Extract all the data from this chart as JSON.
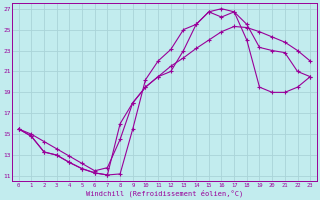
{
  "xlabel": "Windchill (Refroidissement éolien,°C)",
  "bg_color": "#c2ecee",
  "grid_color": "#aad4d8",
  "line_color": "#990099",
  "xlim": [
    -0.5,
    23.5
  ],
  "ylim": [
    10.5,
    27.5
  ],
  "xticks": [
    0,
    1,
    2,
    3,
    4,
    5,
    6,
    7,
    8,
    9,
    10,
    11,
    12,
    13,
    14,
    15,
    16,
    17,
    18,
    19,
    20,
    21,
    22,
    23
  ],
  "yticks": [
    11,
    13,
    15,
    17,
    19,
    21,
    23,
    25,
    27
  ],
  "line1_x": [
    0,
    1,
    2,
    3,
    4,
    5,
    6,
    7,
    8,
    9,
    10,
    11,
    12,
    13,
    14,
    15,
    16,
    17,
    18,
    19,
    20,
    21,
    22,
    23
  ],
  "line1_y": [
    15.5,
    15.0,
    14.3,
    13.6,
    12.9,
    12.2,
    11.5,
    11.8,
    14.5,
    18.0,
    19.5,
    20.5,
    21.5,
    22.3,
    23.2,
    24.0,
    24.8,
    25.3,
    25.2,
    24.8,
    24.3,
    23.8,
    23.0,
    22.0
  ],
  "line2_x": [
    0,
    1,
    2,
    3,
    4,
    5,
    6,
    7,
    8,
    9,
    10,
    11,
    12,
    13,
    14,
    15,
    16,
    17,
    18,
    19,
    20,
    21,
    22,
    23
  ],
  "line2_y": [
    15.5,
    14.8,
    13.3,
    13.0,
    12.3,
    11.7,
    11.3,
    11.1,
    11.2,
    15.5,
    20.2,
    22.0,
    23.1,
    25.0,
    25.5,
    26.7,
    26.2,
    26.7,
    25.5,
    23.3,
    23.0,
    22.8,
    21.0,
    20.5
  ],
  "line3_x": [
    0,
    1,
    2,
    3,
    4,
    5,
    6,
    7,
    8,
    9,
    10,
    11,
    12,
    13,
    14,
    15,
    16,
    17,
    18,
    19,
    20,
    21,
    22,
    23
  ],
  "line3_y": [
    15.5,
    14.8,
    13.3,
    13.0,
    12.3,
    11.7,
    11.3,
    11.1,
    16.0,
    18.0,
    19.5,
    20.5,
    21.0,
    23.0,
    25.5,
    26.7,
    27.0,
    26.7,
    24.0,
    19.5,
    19.0,
    19.0,
    19.5,
    20.5
  ]
}
